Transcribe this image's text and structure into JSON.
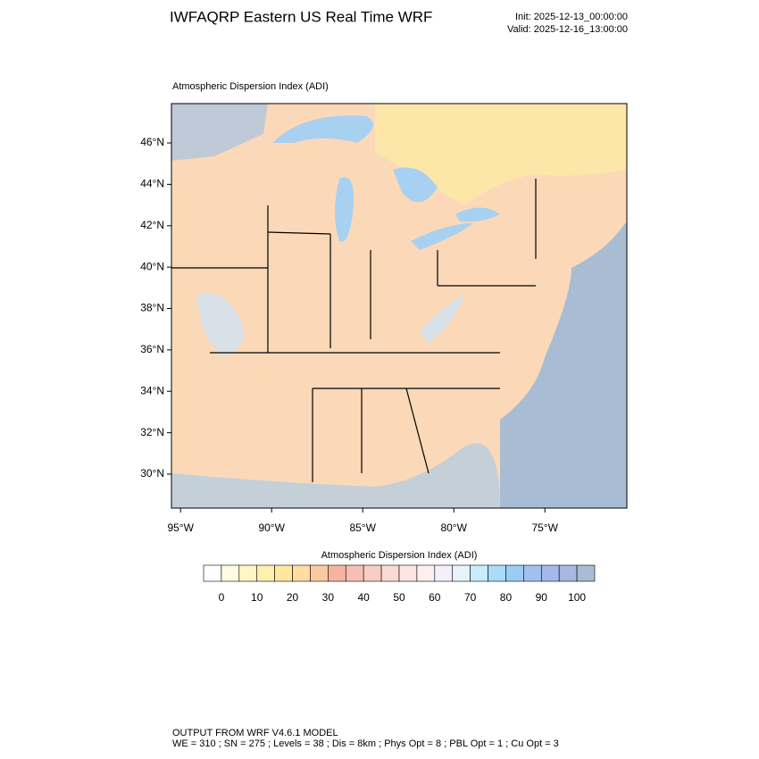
{
  "header": {
    "title": "IWFAQRP Eastern US Real Time WRF",
    "init": "Init: 2025-12-13_00:00:00",
    "valid": "Valid: 2025-12-16_13:00:00"
  },
  "map": {
    "title": "Atmospheric Dispersion Index   (ADI)",
    "latlim": [
      28.36,
      47.9
    ],
    "lonlim": [
      -95.5,
      -70.5
    ],
    "lat_ticks": [
      {
        "value": 46,
        "label": "46°N"
      },
      {
        "value": 44,
        "label": "44°N"
      },
      {
        "value": 42,
        "label": "42°N"
      },
      {
        "value": 40,
        "label": "40°N"
      },
      {
        "value": 38,
        "label": "38°N"
      },
      {
        "value": 36,
        "label": "36°N"
      },
      {
        "value": 34,
        "label": "34°N"
      },
      {
        "value": 32,
        "label": "32°N"
      },
      {
        "value": 30,
        "label": "30°N"
      }
    ],
    "lon_ticks": [
      {
        "value": -95,
        "label": "95°W"
      },
      {
        "value": -90,
        "label": "90°W"
      },
      {
        "value": -85,
        "label": "85°W"
      },
      {
        "value": -80,
        "label": "80°W"
      },
      {
        "value": -75,
        "label": "75°W"
      }
    ]
  },
  "colorbar": {
    "title": "Atmospheric Dispersion Index  (ADI)",
    "ticks": [
      0,
      10,
      20,
      30,
      40,
      50,
      60,
      70,
      80,
      90,
      100
    ],
    "colors": [
      "#ffffff",
      "#fffce0",
      "#fff6c4",
      "#fff0b0",
      "#ffe7a0",
      "#ffdca0",
      "#fbc9a0",
      "#f6b4a0",
      "#f6bfb4",
      "#f8cdc4",
      "#fadad4",
      "#fce6e2",
      "#fdf0ee",
      "#f4f0fa",
      "#e6f2fc",
      "#c8ecfc",
      "#a8dcf8",
      "#9cccf4",
      "#a0c0f0",
      "#a4b8ec",
      "#a8b8e0",
      "#a8bcd4"
    ]
  },
  "footer": {
    "line1": "OUTPUT FROM WRF V4.6.1 MODEL",
    "line2": "WE = 310 ; SN = 275 ; Levels = 38 ; Dis = 8km ; Phys Opt = 8 ; PBL Opt = 1 ; Cu Opt = 3"
  }
}
